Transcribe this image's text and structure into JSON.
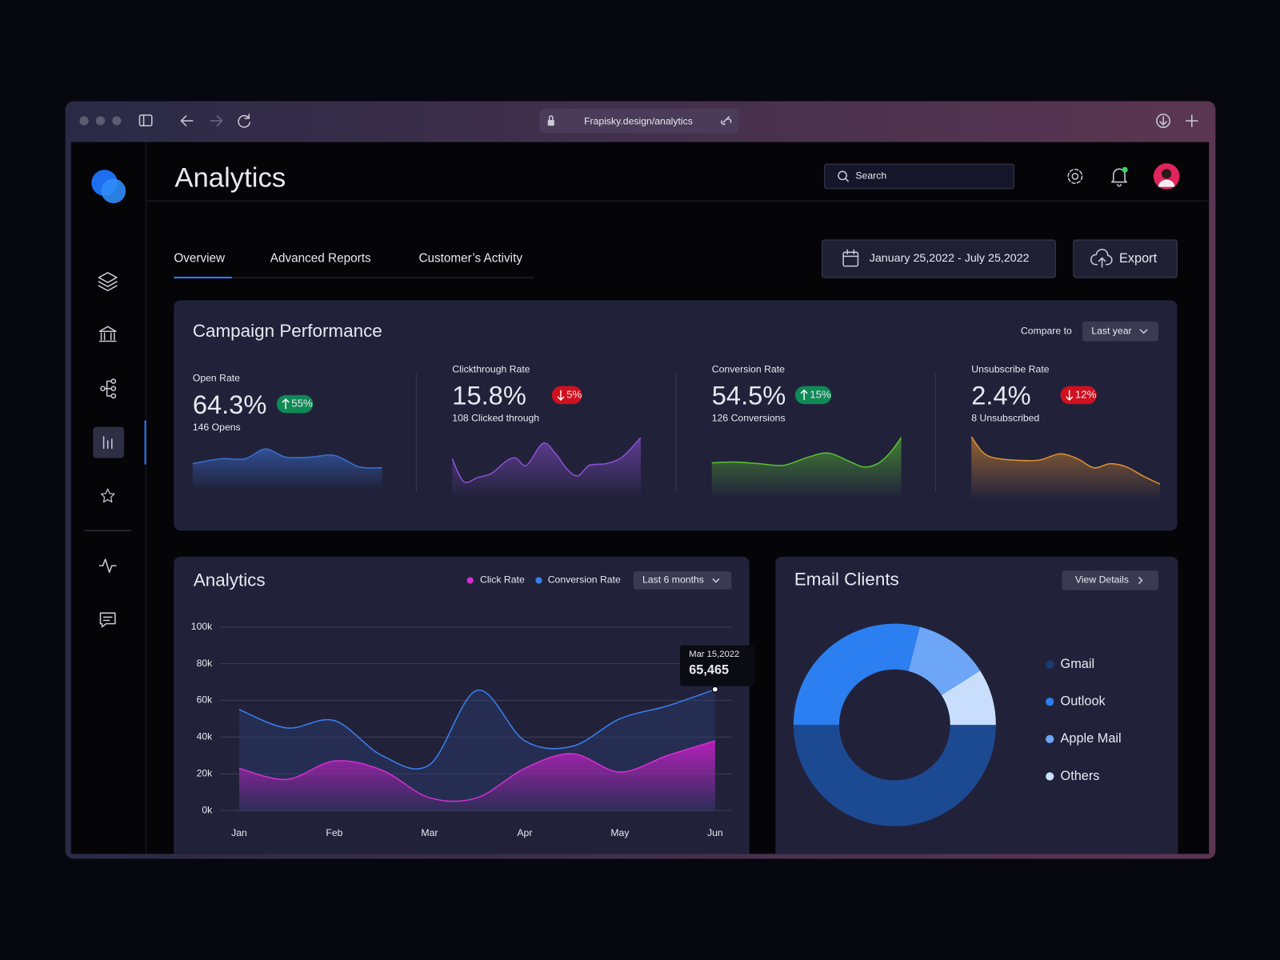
{
  "browser": {
    "url": "Frapisky.design/analytics"
  },
  "header": {
    "title": "Analytics",
    "search": "Search"
  },
  "tabs": [
    "Overview",
    "Advanced Reports",
    "Customer’s Activity"
  ],
  "date_range": "January 25,2022 - July 25,2022",
  "export": "Export",
  "campaign": {
    "title": "Campaign Performance",
    "compare_label": "Compare to",
    "compare_value": "Last year",
    "metrics": [
      {
        "label": "Open Rate",
        "value": "64.3%",
        "change": "55%",
        "trend": "up",
        "sub": "146 Opens",
        "color": "#3a6fd0"
      },
      {
        "label": "Clickthrough Rate",
        "value": "15.8%",
        "change": "5%",
        "trend": "down",
        "sub": "108 Clicked through",
        "color": "#8a4fd0"
      },
      {
        "label": "Conversion Rate",
        "value": "54.5%",
        "change": "15%",
        "trend": "up",
        "sub": "126 Conversions",
        "color": "#5ac030"
      },
      {
        "label": "Unsubscribe Rate",
        "value": "2.4%",
        "change": "12%",
        "trend": "down",
        "sub": "8 Unsubscribed",
        "color": "#e09030"
      }
    ]
  },
  "chart_data": [
    {
      "type": "line",
      "title": "Analytics",
      "range_select": "Last 6 months",
      "categories": [
        "Jan",
        null,
        "Feb",
        null,
        "Mar",
        null,
        "Apr",
        null,
        "May",
        null,
        "Jun"
      ],
      "series": [
        {
          "name": "Click Rate",
          "color": "#d62fd0",
          "values": [
            23000,
            17000,
            27000,
            22000,
            7000,
            7000,
            23000,
            31000,
            21000,
            30000,
            38000
          ]
        },
        {
          "name": "Conversion Rate",
          "color": "#3a7ff0",
          "values": [
            55000,
            45000,
            49000,
            30000,
            25000,
            65465,
            38000,
            35000,
            50000,
            57000,
            66000
          ]
        }
      ],
      "ylim": [
        0,
        100000
      ],
      "yticks": [
        {
          "value": 0,
          "label": "0k"
        },
        {
          "value": 20000,
          "label": "20k"
        },
        {
          "value": 40000,
          "label": "40k"
        },
        {
          "value": 60000,
          "label": "60k"
        },
        {
          "value": 80000,
          "label": "80k"
        },
        {
          "value": 100000,
          "label": "100k"
        }
      ],
      "grid": true,
      "tooltip": {
        "date": "Mar 15,2022",
        "label": "65,465"
      }
    },
    {
      "type": "pie",
      "title": "Email Clients",
      "button": "View Details",
      "donut": true,
      "categories": [
        "Gmail",
        "Outlook",
        "Apple Mail",
        "Others"
      ],
      "values": [
        50,
        29,
        12,
        9
      ],
      "colors": [
        "#1c4a92",
        "#2c7ff0",
        "#6ea6f7",
        "#c8defc"
      ]
    }
  ]
}
